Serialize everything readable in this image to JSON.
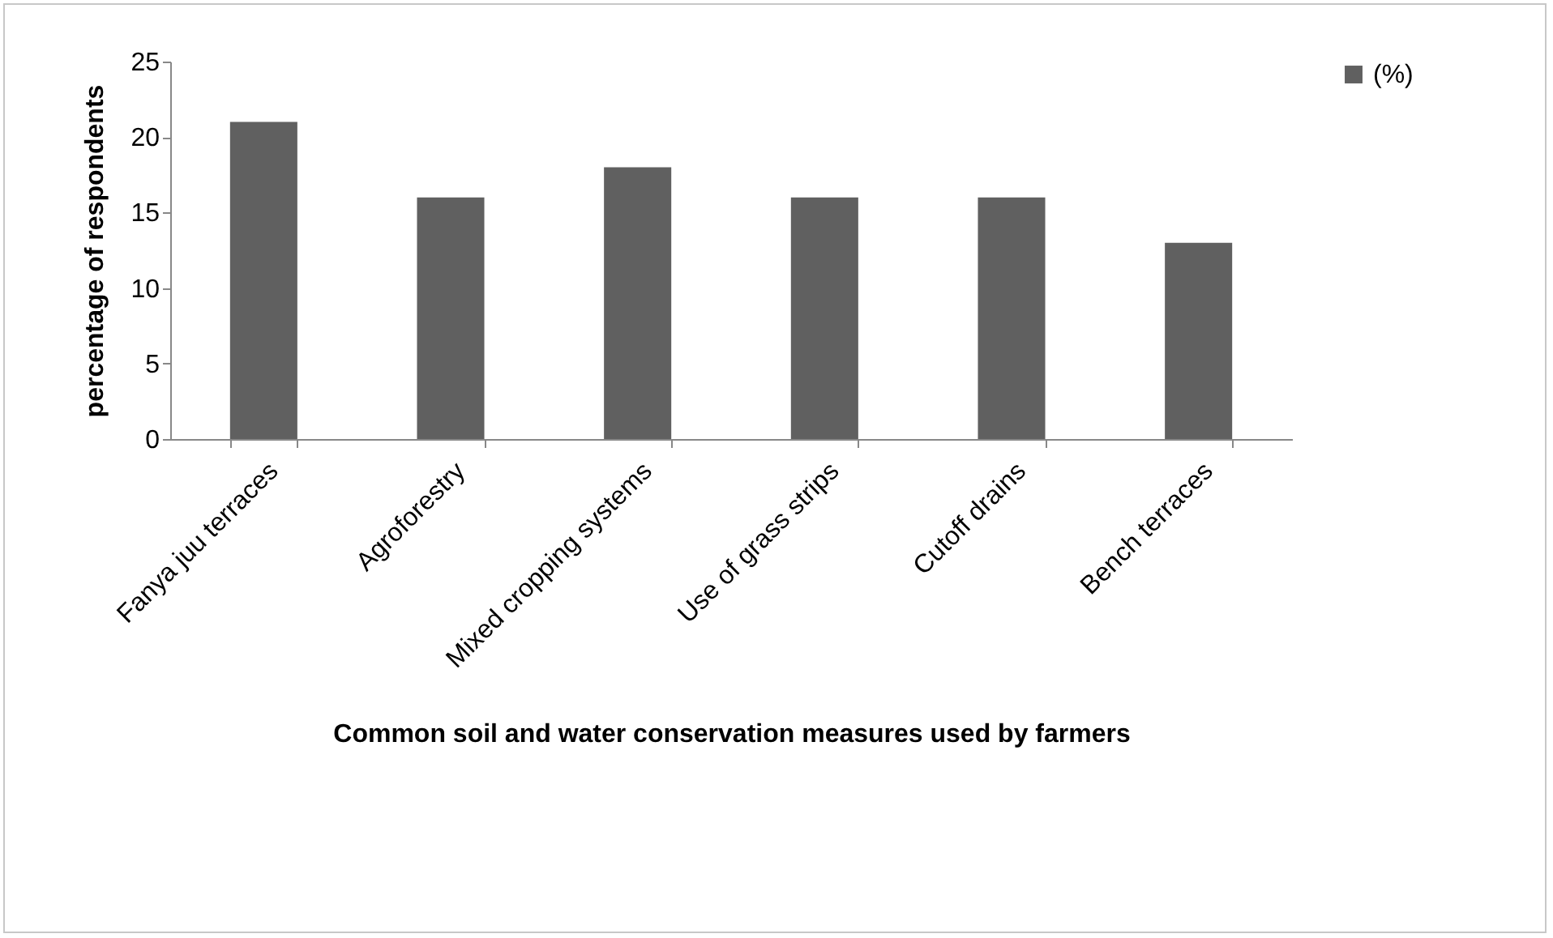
{
  "chart_data": {
    "type": "bar",
    "xlabel": "Common soil and water conservation measures  used by farmers",
    "ylabel": "percentage of respondents",
    "categories": [
      "Fanya  juu terraces",
      "Agroforestry",
      "Mixed cropping systems",
      "Use of grass strips",
      "Cutoff drains",
      "Bench terraces"
    ],
    "series": [
      {
        "name": "(%)",
        "color": "#606060",
        "values": [
          21,
          16,
          18,
          16,
          16,
          13
        ]
      }
    ],
    "ylim": [
      0,
      25
    ],
    "yticks": [
      0,
      5,
      10,
      15,
      20,
      25
    ],
    "legend": "right"
  }
}
